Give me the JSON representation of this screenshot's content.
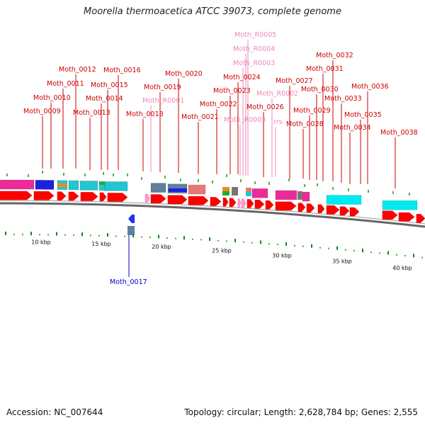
{
  "title": "Moorella thermoacetica ATCC 39073, complete genome",
  "footer": {
    "accession": "Accession: NC_007644",
    "stats": "Topology: circular; Length: 2,628,784 bp; Genes: 2,555"
  },
  "colors": {
    "gene": "#ff0000",
    "gene_other": "#2233ee",
    "rna": "#ff99cc",
    "backbone": "#666666",
    "tick": "#119911",
    "scale_tick": "#118811",
    "cog_magenta": "#ee2a9a",
    "cog_blue": "#1a22dd",
    "cog_cyan": "#23c5cf",
    "cog_cyan_bright": "#00e9ef",
    "cog_steel": "#5f7f9f",
    "cog_salmon": "#e87878",
    "cog_orange": "#ee8a22",
    "cog_green": "#22aa33",
    "cog_grey": "#777777",
    "label_gene": "#cc0000",
    "label_rna": "#ee88bb",
    "label_other": "#0000cc"
  },
  "scale": [
    {
      "label": "10 kbp"
    },
    {
      "label": "15 kbp"
    },
    {
      "label": "20 kbp"
    },
    {
      "label": "25 kbp"
    },
    {
      "label": "30 kbp"
    },
    {
      "label": "35 kbp"
    },
    {
      "label": "40 kbp"
    }
  ],
  "labels": [
    {
      "text": "Moth_0009",
      "kind": "gene"
    },
    {
      "text": "Moth_0010",
      "kind": "gene"
    },
    {
      "text": "Moth_0011",
      "kind": "gene"
    },
    {
      "text": "Moth_0012",
      "kind": "gene"
    },
    {
      "text": "Moth_0013",
      "kind": "gene"
    },
    {
      "text": "Moth_0014",
      "kind": "gene"
    },
    {
      "text": "Moth_0015",
      "kind": "gene"
    },
    {
      "text": "Moth_0016",
      "kind": "gene"
    },
    {
      "text": "Moth_0018",
      "kind": "gene"
    },
    {
      "text": "Moth_R0001",
      "kind": "rna"
    },
    {
      "text": "Moth_0019",
      "kind": "gene"
    },
    {
      "text": "Moth_0020",
      "kind": "gene"
    },
    {
      "text": "Moth_0021",
      "kind": "gene"
    },
    {
      "text": "Moth_0022",
      "kind": "gene"
    },
    {
      "text": "Moth_0023",
      "kind": "gene"
    },
    {
      "text": "Moth_0024",
      "kind": "gene"
    },
    {
      "text": "Moth_R0003",
      "kind": "rna"
    },
    {
      "text": "Moth_R0003",
      "kind": "rna"
    },
    {
      "text": "Moth_R0004",
      "kind": "rna"
    },
    {
      "text": "Moth_R0005",
      "kind": "rna"
    },
    {
      "text": "Moth_R0002",
      "kind": "rna"
    },
    {
      "text": "Moth_0026",
      "kind": "gene"
    },
    {
      "text": "rrs",
      "kind": "rna"
    },
    {
      "text": "Moth_0027",
      "kind": "gene"
    },
    {
      "text": "Moth_0028",
      "kind": "gene"
    },
    {
      "text": "Moth_0029",
      "kind": "gene"
    },
    {
      "text": "Moth_0030",
      "kind": "gene"
    },
    {
      "text": "Moth_0031",
      "kind": "gene"
    },
    {
      "text": "Moth_0032",
      "kind": "gene"
    },
    {
      "text": "Moth_0033",
      "kind": "gene"
    },
    {
      "text": "Moth_0034",
      "kind": "gene"
    },
    {
      "text": "Moth_0035",
      "kind": "gene"
    },
    {
      "text": "Moth_0036",
      "kind": "gene"
    },
    {
      "text": "Moth_0038",
      "kind": "gene"
    },
    {
      "text": "Moth_0017",
      "kind": "other"
    }
  ]
}
